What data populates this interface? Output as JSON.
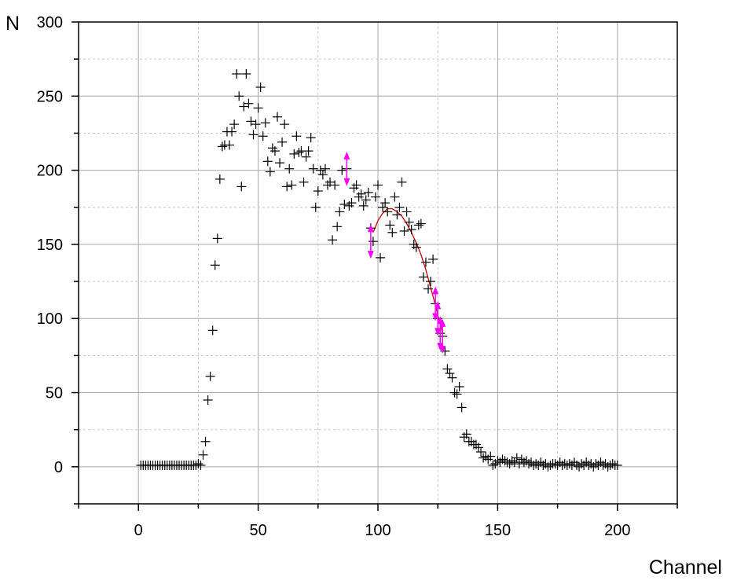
{
  "chart_data": {
    "type": "scatter",
    "title": "",
    "xlabel": "Channel",
    "ylabel": "N",
    "xlim": [
      -25,
      225
    ],
    "ylim": [
      -25,
      300
    ],
    "xticks": [
      0,
      50,
      100,
      150,
      200
    ],
    "yticks": [
      0,
      50,
      100,
      150,
      200,
      250,
      300
    ],
    "grid": true,
    "legend": "none",
    "series": [
      {
        "marker": "plus",
        "color": "#000000",
        "points": [
          [
            1,
            1
          ],
          [
            2,
            1
          ],
          [
            3,
            1
          ],
          [
            4,
            1
          ],
          [
            5,
            1
          ],
          [
            6,
            1
          ],
          [
            7,
            1
          ],
          [
            8,
            1
          ],
          [
            9,
            1
          ],
          [
            10,
            1
          ],
          [
            11,
            1
          ],
          [
            12,
            1
          ],
          [
            13,
            1
          ],
          [
            14,
            1
          ],
          [
            15,
            1
          ],
          [
            16,
            1
          ],
          [
            17,
            1
          ],
          [
            18,
            1
          ],
          [
            19,
            1
          ],
          [
            20,
            1
          ],
          [
            21,
            1
          ],
          [
            22,
            1
          ],
          [
            23,
            1
          ],
          [
            24,
            1
          ],
          [
            25,
            2
          ],
          [
            26,
            1
          ],
          [
            27,
            8
          ],
          [
            28,
            17
          ],
          [
            29,
            45
          ],
          [
            30,
            61
          ],
          [
            31,
            92
          ],
          [
            32,
            136
          ],
          [
            33,
            154
          ],
          [
            34,
            194
          ],
          [
            35,
            216
          ],
          [
            36,
            217
          ],
          [
            37,
            226
          ],
          [
            38,
            217
          ],
          [
            39,
            226
          ],
          [
            40,
            231
          ],
          [
            41,
            265
          ],
          [
            42,
            250
          ],
          [
            43,
            189
          ],
          [
            44,
            243
          ],
          [
            45,
            265
          ],
          [
            46,
            245
          ],
          [
            47,
            233
          ],
          [
            48,
            224
          ],
          [
            49,
            231
          ],
          [
            50,
            242
          ],
          [
            51,
            256
          ],
          [
            52,
            223
          ],
          [
            53,
            232
          ],
          [
            54,
            206
          ],
          [
            55,
            199
          ],
          [
            56,
            215
          ],
          [
            57,
            213
          ],
          [
            58,
            236
          ],
          [
            59,
            205
          ],
          [
            60,
            219
          ],
          [
            61,
            231
          ],
          [
            62,
            189
          ],
          [
            63,
            201
          ],
          [
            64,
            190
          ],
          [
            65,
            211
          ],
          [
            66,
            223
          ],
          [
            67,
            212
          ],
          [
            68,
            213
          ],
          [
            69,
            192
          ],
          [
            70,
            209
          ],
          [
            71,
            213
          ],
          [
            72,
            222
          ],
          [
            73,
            201
          ],
          [
            74,
            175
          ],
          [
            75,
            186
          ],
          [
            76,
            200
          ],
          [
            77,
            197
          ],
          [
            78,
            201
          ],
          [
            79,
            190
          ],
          [
            80,
            192
          ],
          [
            81,
            153
          ],
          [
            82,
            190
          ],
          [
            83,
            162
          ],
          [
            84,
            172
          ],
          [
            85,
            200
          ],
          [
            86,
            177
          ],
          [
            87,
            201
          ],
          [
            88,
            176
          ],
          [
            89,
            178
          ],
          [
            90,
            188
          ],
          [
            91,
            190
          ],
          [
            92,
            182
          ],
          [
            93,
            184
          ],
          [
            94,
            176
          ],
          [
            95,
            180
          ],
          [
            96,
            185
          ],
          [
            97,
            161
          ],
          [
            98,
            152
          ],
          [
            99,
            182
          ],
          [
            100,
            190
          ],
          [
            101,
            141
          ],
          [
            102,
            175
          ],
          [
            103,
            178
          ],
          [
            104,
            172
          ],
          [
            105,
            163
          ],
          [
            106,
            158
          ],
          [
            107,
            182
          ],
          [
            108,
            170
          ],
          [
            109,
            175
          ],
          [
            110,
            192
          ],
          [
            111,
            159
          ],
          [
            112,
            172
          ],
          [
            113,
            165
          ],
          [
            114,
            160
          ],
          [
            115,
            150
          ],
          [
            116,
            148
          ],
          [
            117,
            163
          ],
          [
            118,
            164
          ],
          [
            119,
            128
          ],
          [
            120,
            138
          ],
          [
            121,
            120
          ],
          [
            122,
            125
          ],
          [
            123,
            140
          ],
          [
            124,
            110
          ],
          [
            125,
            100
          ],
          [
            126,
            90
          ],
          [
            127,
            88
          ],
          [
            128,
            78
          ],
          [
            129,
            66
          ],
          [
            130,
            63
          ],
          [
            131,
            60
          ],
          [
            132,
            50
          ],
          [
            133,
            49
          ],
          [
            134,
            54
          ],
          [
            135,
            40
          ],
          [
            136,
            20
          ],
          [
            137,
            22
          ],
          [
            138,
            17
          ],
          [
            139,
            17
          ],
          [
            140,
            15
          ],
          [
            141,
            15
          ],
          [
            142,
            13
          ],
          [
            143,
            10
          ],
          [
            144,
            6
          ],
          [
            145,
            7
          ],
          [
            146,
            5
          ],
          [
            147,
            7
          ],
          [
            148,
            1
          ],
          [
            149,
            2
          ],
          [
            150,
            4
          ],
          [
            151,
            3
          ],
          [
            152,
            5
          ],
          [
            153,
            4
          ],
          [
            154,
            3
          ],
          [
            155,
            2
          ],
          [
            156,
            4
          ],
          [
            157,
            3
          ],
          [
            158,
            6
          ],
          [
            159,
            2
          ],
          [
            160,
            5
          ],
          [
            161,
            3
          ],
          [
            162,
            4
          ],
          [
            163,
            2
          ],
          [
            164,
            3
          ],
          [
            165,
            1
          ],
          [
            166,
            2
          ],
          [
            167,
            1
          ],
          [
            168,
            3
          ],
          [
            169,
            1
          ],
          [
            170,
            2
          ],
          [
            171,
            0
          ],
          [
            172,
            1
          ],
          [
            173,
            2
          ],
          [
            174,
            2
          ],
          [
            175,
            1
          ],
          [
            176,
            3
          ],
          [
            177,
            1
          ],
          [
            178,
            2
          ],
          [
            179,
            1
          ],
          [
            180,
            2
          ],
          [
            181,
            1
          ],
          [
            182,
            3
          ],
          [
            183,
            1
          ],
          [
            184,
            0
          ],
          [
            185,
            2
          ],
          [
            186,
            1
          ],
          [
            187,
            3
          ],
          [
            188,
            1
          ],
          [
            189,
            2
          ],
          [
            190,
            0
          ],
          [
            191,
            2
          ],
          [
            192,
            1
          ],
          [
            193,
            3
          ],
          [
            194,
            1
          ],
          [
            195,
            2
          ],
          [
            196,
            0
          ],
          [
            197,
            1
          ],
          [
            198,
            2
          ],
          [
            199,
            1
          ],
          [
            200,
            1
          ]
        ]
      }
    ],
    "fit_curve": {
      "color": "#cc0000",
      "points": [
        [
          98,
          158
        ],
        [
          100,
          166
        ],
        [
          102,
          171
        ],
        [
          104,
          174
        ],
        [
          106,
          174
        ],
        [
          108,
          172
        ],
        [
          110,
          169
        ],
        [
          112,
          164
        ],
        [
          114,
          158
        ],
        [
          116,
          151
        ],
        [
          118,
          143
        ],
        [
          120,
          133
        ],
        [
          122,
          121
        ],
        [
          124,
          109
        ],
        [
          126,
          96
        ],
        [
          127,
          90
        ]
      ]
    },
    "markers": {
      "color": "#ff00ff",
      "shape": "double-arrow",
      "points": [
        [
          87,
          201
        ],
        [
          97,
          152
        ],
        [
          124,
          110
        ],
        [
          125,
          100
        ],
        [
          126,
          90
        ],
        [
          127,
          88
        ]
      ]
    }
  }
}
